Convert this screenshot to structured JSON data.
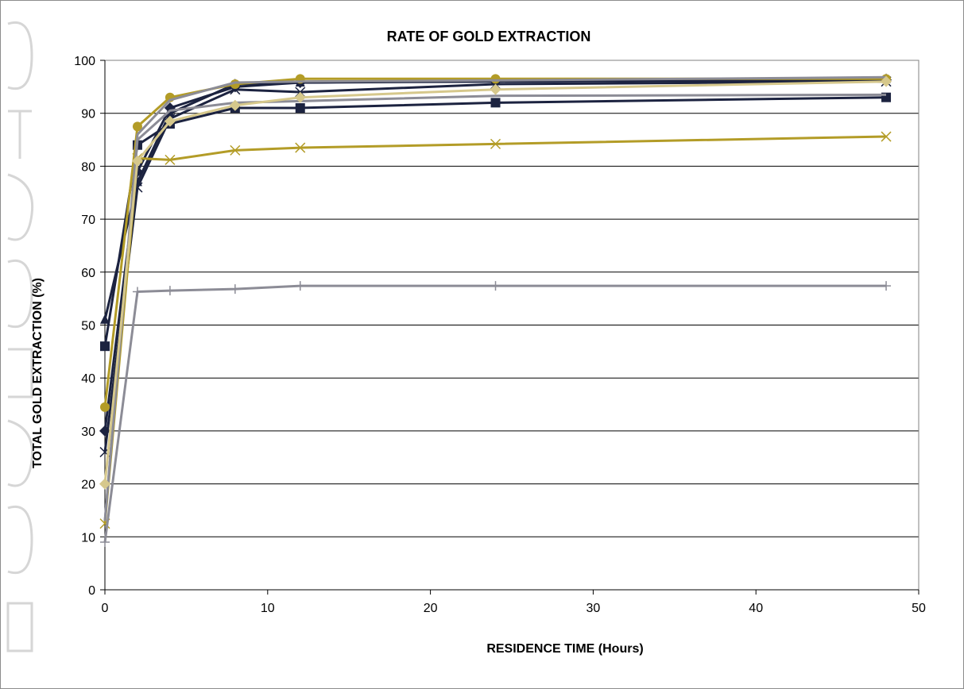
{
  "chart_data": {
    "type": "line",
    "title": "RATE OF GOLD EXTRACTION",
    "xlabel": "RESIDENCE TIME (Hours)",
    "ylabel": "TOTAL GOLD EXTRACTION (%)",
    "xlim": [
      0,
      50
    ],
    "ylim": [
      0,
      100
    ],
    "xticks": [
      0,
      10,
      20,
      30,
      40,
      50
    ],
    "yticks": [
      0,
      10,
      20,
      30,
      40,
      50,
      60,
      70,
      80,
      90,
      100
    ],
    "grid": "horizontal",
    "legend": "none",
    "x": [
      0,
      2,
      4,
      8,
      12,
      24,
      48
    ],
    "series": [
      {
        "values": [
          51,
          77,
          90,
          95.5,
          95.8,
          96.2,
          96.5
        ],
        "color": "#1c2340",
        "marker": "triangle"
      },
      {
        "values": [
          46,
          84,
          88,
          91,
          91,
          92,
          93
        ],
        "color": "#1c2340",
        "marker": "square"
      },
      {
        "values": [
          30,
          79,
          91,
          95,
          95.8,
          96,
          96.3
        ],
        "color": "#1c2340",
        "marker": "diamond"
      },
      {
        "values": [
          26,
          76,
          89,
          94.5,
          94,
          95.5,
          96
        ],
        "color": "#1c2340",
        "marker": "x"
      },
      {
        "values": [
          34.5,
          87.5,
          93,
          95.5,
          96.5,
          96.5,
          96.5
        ],
        "color": "#b39c27",
        "marker": "circle"
      },
      {
        "values": [
          12.5,
          81.5,
          81.2,
          83,
          83.5,
          84.2,
          85.6
        ],
        "color": "#b39c27",
        "marker": "x"
      },
      {
        "values": [
          13,
          86,
          92.5,
          95.8,
          96,
          96.2,
          96.8
        ],
        "color": "#8c8c96",
        "marker": "none"
      },
      {
        "values": [
          13,
          85,
          90.5,
          92,
          92.3,
          93.3,
          93.5
        ],
        "color": "#8c8c96",
        "marker": "none"
      },
      {
        "values": [
          9,
          56.3,
          56.5,
          56.8,
          57.4,
          57.4,
          57.4
        ],
        "color": "#8c8c96",
        "marker": "plus"
      },
      {
        "values": [
          20,
          81,
          88.5,
          91.5,
          93,
          94.5,
          96
        ],
        "color": "#d6c88c",
        "marker": "diamond"
      }
    ]
  }
}
